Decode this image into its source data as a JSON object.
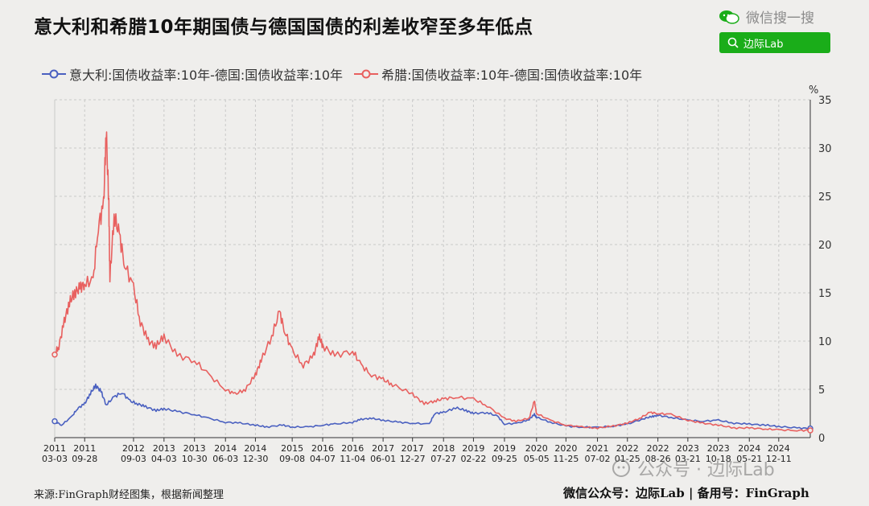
{
  "header": {
    "title": "意大利和希腊10年期国债与德国国债的利差收窄至多年低点",
    "wechat_label": "微信搜一搜",
    "search_label": "边际Lab"
  },
  "footer": {
    "source": "来源:FinGraph财经图集，根据新闻整理",
    "account": "微信公众号：边际Lab  |  备用号：FinGraph",
    "watermark": "公众号 · 边际Lab"
  },
  "colors": {
    "italy": "#4a60c0",
    "greece": "#e8605f",
    "brand_green": "#1aad19"
  },
  "chart_data": {
    "type": "line",
    "title": "意大利和希腊10年期国债与德国国债的利差收窄至多年低点",
    "ylabel": "%",
    "ylim": [
      0,
      35
    ],
    "yticks": [
      0,
      5,
      10,
      15,
      20,
      25,
      30,
      35
    ],
    "y_axis_side": "right",
    "grid": true,
    "legend_position": "top-left",
    "x_ticks": [
      {
        "year": "2011",
        "date": "03-03",
        "t": 2011.17
      },
      {
        "year": "2011",
        "date": "09-28",
        "t": 2011.74
      },
      {
        "year": "2012",
        "date": "09-03",
        "t": 2012.67
      },
      {
        "year": "2013",
        "date": "04-03",
        "t": 2013.25
      },
      {
        "year": "2013",
        "date": "10-30",
        "t": 2013.83
      },
      {
        "year": "2014",
        "date": "06-03",
        "t": 2014.42
      },
      {
        "year": "2014",
        "date": "12-30",
        "t": 2014.99
      },
      {
        "year": "2015",
        "date": "09-08",
        "t": 2015.69
      },
      {
        "year": "2016",
        "date": "04-07",
        "t": 2016.27
      },
      {
        "year": "2016",
        "date": "11-04",
        "t": 2016.84
      },
      {
        "year": "2017",
        "date": "06-01",
        "t": 2017.42
      },
      {
        "year": "2017",
        "date": "12-27",
        "t": 2017.98
      },
      {
        "year": "2018",
        "date": "07-27",
        "t": 2018.57
      },
      {
        "year": "2019",
        "date": "02-22",
        "t": 2019.14
      },
      {
        "year": "2019",
        "date": "09-25",
        "t": 2019.73
      },
      {
        "year": "2020",
        "date": "05-05",
        "t": 2020.34
      },
      {
        "year": "2020",
        "date": "11-25",
        "t": 2020.9
      },
      {
        "year": "2021",
        "date": "07-02",
        "t": 2021.5
      },
      {
        "year": "2022",
        "date": "01-25",
        "t": 2022.07
      },
      {
        "year": "2022",
        "date": "08-26",
        "t": 2022.65
      },
      {
        "year": "2023",
        "date": "03-21",
        "t": 2023.22
      },
      {
        "year": "2023",
        "date": "10-18",
        "t": 2023.8
      },
      {
        "year": "2024",
        "date": "05-21",
        "t": 2024.39
      },
      {
        "year": "2024",
        "date": "12-11",
        "t": 2024.95
      }
    ],
    "xlim": [
      2011.17,
      2025.55
    ],
    "series": [
      {
        "name": "意大利:国债收益率:10年-德国:国债收益率:10年",
        "color": "#4a60c0",
        "points": [
          [
            2011.17,
            1.7
          ],
          [
            2011.3,
            1.3
          ],
          [
            2011.5,
            2.2
          ],
          [
            2011.6,
            3.0
          ],
          [
            2011.74,
            3.5
          ],
          [
            2011.85,
            4.6
          ],
          [
            2011.95,
            5.4
          ],
          [
            2012.05,
            4.8
          ],
          [
            2012.15,
            3.4
          ],
          [
            2012.3,
            4.2
          ],
          [
            2012.45,
            4.7
          ],
          [
            2012.6,
            3.8
          ],
          [
            2012.75,
            3.5
          ],
          [
            2012.9,
            3.2
          ],
          [
            2013.1,
            2.8
          ],
          [
            2013.25,
            3.0
          ],
          [
            2013.5,
            2.7
          ],
          [
            2013.83,
            2.4
          ],
          [
            2014.1,
            2.0
          ],
          [
            2014.42,
            1.6
          ],
          [
            2014.7,
            1.5
          ],
          [
            2014.99,
            1.3
          ],
          [
            2015.2,
            1.1
          ],
          [
            2015.5,
            1.3
          ],
          [
            2015.69,
            1.1
          ],
          [
            2016.0,
            1.1
          ],
          [
            2016.27,
            1.3
          ],
          [
            2016.5,
            1.4
          ],
          [
            2016.84,
            1.6
          ],
          [
            2017.0,
            1.9
          ],
          [
            2017.2,
            2.0
          ],
          [
            2017.42,
            1.8
          ],
          [
            2017.7,
            1.6
          ],
          [
            2017.98,
            1.5
          ],
          [
            2018.3,
            1.4
          ],
          [
            2018.4,
            2.5
          ],
          [
            2018.57,
            2.6
          ],
          [
            2018.8,
            3.1
          ],
          [
            2019.0,
            2.8
          ],
          [
            2019.14,
            2.5
          ],
          [
            2019.4,
            2.6
          ],
          [
            2019.6,
            2.2
          ],
          [
            2019.73,
            1.4
          ],
          [
            2020.0,
            1.5
          ],
          [
            2020.2,
            1.9
          ],
          [
            2020.3,
            2.4
          ],
          [
            2020.34,
            2.1
          ],
          [
            2020.6,
            1.6
          ],
          [
            2020.9,
            1.2
          ],
          [
            2021.2,
            1.1
          ],
          [
            2021.5,
            1.05
          ],
          [
            2021.8,
            1.2
          ],
          [
            2022.07,
            1.4
          ],
          [
            2022.4,
            2.0
          ],
          [
            2022.55,
            2.2
          ],
          [
            2022.65,
            2.3
          ],
          [
            2022.9,
            2.1
          ],
          [
            2023.22,
            1.8
          ],
          [
            2023.5,
            1.7
          ],
          [
            2023.8,
            1.8
          ],
          [
            2024.1,
            1.5
          ],
          [
            2024.39,
            1.4
          ],
          [
            2024.7,
            1.3
          ],
          [
            2024.95,
            1.15
          ],
          [
            2025.3,
            1.0
          ],
          [
            2025.55,
            0.95
          ]
        ]
      },
      {
        "name": "希腊:国债收益率:10年-德国:国债收益率:10年",
        "color": "#e8605f",
        "points": [
          [
            2011.17,
            8.6
          ],
          [
            2011.25,
            9.5
          ],
          [
            2011.35,
            12.0
          ],
          [
            2011.45,
            14.0
          ],
          [
            2011.55,
            15.0
          ],
          [
            2011.65,
            15.5
          ],
          [
            2011.74,
            16.0
          ],
          [
            2011.9,
            16.2
          ],
          [
            2012.0,
            22.0
          ],
          [
            2012.1,
            24.0
          ],
          [
            2012.15,
            32.0
          ],
          [
            2012.2,
            24.0
          ],
          [
            2012.22,
            16.5
          ],
          [
            2012.3,
            23.0
          ],
          [
            2012.4,
            21.0
          ],
          [
            2012.5,
            18.0
          ],
          [
            2012.67,
            15.5
          ],
          [
            2012.8,
            12.0
          ],
          [
            2012.95,
            10.0
          ],
          [
            2013.1,
            9.5
          ],
          [
            2013.25,
            10.5
          ],
          [
            2013.5,
            8.5
          ],
          [
            2013.83,
            8.0
          ],
          [
            2014.1,
            6.5
          ],
          [
            2014.42,
            5.0
          ],
          [
            2014.6,
            4.5
          ],
          [
            2014.8,
            5.0
          ],
          [
            2014.99,
            6.5
          ],
          [
            2015.1,
            8.0
          ],
          [
            2015.3,
            10.5
          ],
          [
            2015.45,
            13.0
          ],
          [
            2015.55,
            11.0
          ],
          [
            2015.69,
            9.0
          ],
          [
            2015.9,
            7.5
          ],
          [
            2016.1,
            8.5
          ],
          [
            2016.2,
            10.5
          ],
          [
            2016.27,
            9.5
          ],
          [
            2016.5,
            8.5
          ],
          [
            2016.84,
            9.0
          ],
          [
            2017.0,
            7.5
          ],
          [
            2017.2,
            6.5
          ],
          [
            2017.42,
            6.0
          ],
          [
            2017.6,
            5.5
          ],
          [
            2017.98,
            4.5
          ],
          [
            2018.2,
            3.5
          ],
          [
            2018.4,
            3.8
          ],
          [
            2018.57,
            4.0
          ],
          [
            2018.8,
            4.2
          ],
          [
            2019.14,
            4.0
          ],
          [
            2019.4,
            3.3
          ],
          [
            2019.73,
            2.0
          ],
          [
            2019.95,
            1.7
          ],
          [
            2020.2,
            2.0
          ],
          [
            2020.3,
            3.8
          ],
          [
            2020.34,
            2.5
          ],
          [
            2020.6,
            1.8
          ],
          [
            2020.9,
            1.3
          ],
          [
            2021.2,
            1.1
          ],
          [
            2021.5,
            1.0
          ],
          [
            2021.8,
            1.2
          ],
          [
            2022.07,
            1.5
          ],
          [
            2022.3,
            2.0
          ],
          [
            2022.5,
            2.6
          ],
          [
            2022.65,
            2.5
          ],
          [
            2022.9,
            2.4
          ],
          [
            2023.22,
            1.8
          ],
          [
            2023.5,
            1.5
          ],
          [
            2023.8,
            1.3
          ],
          [
            2024.1,
            1.0
          ],
          [
            2024.39,
            1.0
          ],
          [
            2024.7,
            0.9
          ],
          [
            2024.95,
            0.8
          ],
          [
            2025.3,
            0.75
          ],
          [
            2025.55,
            0.75
          ]
        ]
      }
    ]
  }
}
